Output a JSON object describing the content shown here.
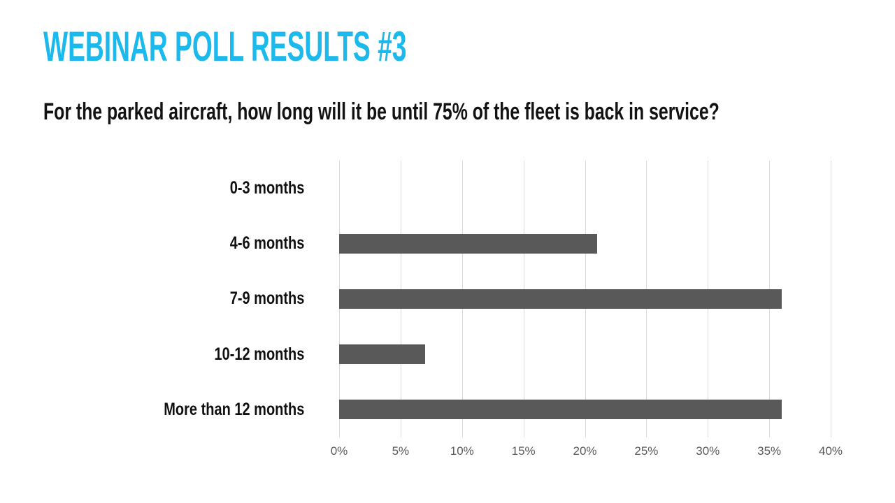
{
  "page": {
    "background_color": "#ffffff"
  },
  "header": {
    "title": "WEBINAR POLL RESULTS #3",
    "title_color": "#1bb9ec"
  },
  "question": {
    "text": "For the parked aircraft, how long will it be until 75% of the fleet is back in service?",
    "text_color": "#121212"
  },
  "chart_data": {
    "type": "bar",
    "orientation": "horizontal",
    "title": "",
    "xlabel": "",
    "ylabel": "",
    "categories": [
      "0-3 months",
      "4-6 months",
      "7-9 months",
      "10-12 months",
      "More than 12 months"
    ],
    "values": [
      0,
      21,
      36,
      7,
      36
    ],
    "unit": "%",
    "xlim": [
      0,
      40
    ],
    "x_tick_step": 5,
    "x_tick_labels": [
      "0%",
      "5%",
      "10%",
      "15%",
      "20%",
      "25%",
      "30%",
      "35%",
      "40%"
    ],
    "grid": true,
    "legend": false,
    "bar_color": "#595959",
    "gridline_color": "#d9d9d9",
    "tick_label_color": "#595959"
  }
}
